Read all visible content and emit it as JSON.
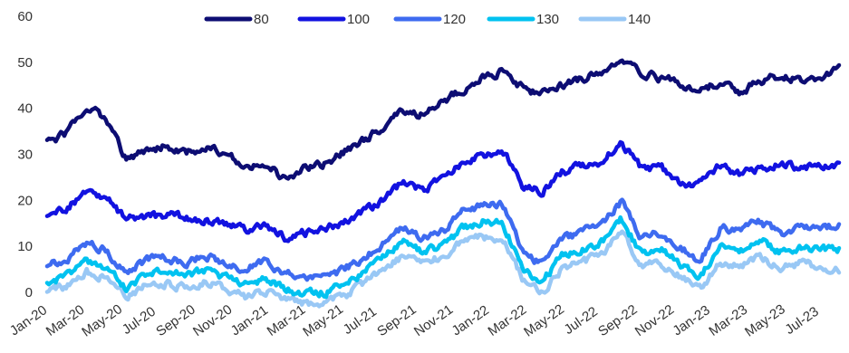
{
  "chart_data": {
    "type": "line",
    "title": "",
    "xlabel": "",
    "ylabel": "",
    "ylim": [
      0,
      60
    ],
    "yticks": [
      "0",
      "10",
      "20",
      "30",
      "40",
      "50",
      "60"
    ],
    "legend_position": "top",
    "grid": false,
    "x_labels": [
      "Jan-20",
      "Mar-20",
      "May-20",
      "Jul-20",
      "Sep-20",
      "Nov-20",
      "Jan-21",
      "Mar-21",
      "May-21",
      "Jul-21",
      "Sep-21",
      "Nov-21",
      "Jan-22",
      "Mar-22",
      "May-22",
      "Jul-22",
      "Sep-22",
      "Nov-22",
      "Jan-23",
      "Mar-23",
      "May-23",
      "Jul-23"
    ],
    "series": [
      {
        "name": "80",
        "color": "#0d0d73",
        "values": [
          32.5,
          34.5,
          40.5,
          37.5,
          29.0,
          30.5,
          32.0,
          30.5,
          31.5,
          30.0,
          27.5,
          28.0,
          24.5,
          27.0,
          28.0,
          30.5,
          33.0,
          36.0,
          39.5,
          38.5,
          41.5,
          44.0,
          46.5,
          48.0,
          44.5,
          43.0,
          45.0,
          46.5,
          47.5,
          49.5,
          48.0,
          46.5,
          45.5,
          44.0,
          45.5,
          43.5,
          46.0,
          47.0,
          46.5,
          46.5,
          48.5
        ]
      },
      {
        "name": "100",
        "color": "#1212e0",
        "values": [
          16.5,
          18.5,
          22.0,
          20.5,
          16.0,
          16.5,
          16.5,
          16.5,
          15.5,
          15.0,
          13.5,
          14.5,
          12.0,
          13.0,
          13.5,
          15.5,
          17.5,
          20.0,
          24.0,
          22.0,
          25.0,
          28.5,
          29.5,
          31.0,
          23.0,
          22.0,
          26.0,
          27.5,
          28.5,
          32.5,
          27.0,
          27.0,
          24.0,
          23.5,
          27.5,
          25.5,
          27.0,
          28.0,
          27.0,
          27.5,
          28.0
        ]
      },
      {
        "name": "120",
        "color": "#3e6bf0",
        "values": [
          6.0,
          7.5,
          11.0,
          9.0,
          4.0,
          7.0,
          7.5,
          6.5,
          8.0,
          6.5,
          5.0,
          6.5,
          4.0,
          3.0,
          3.0,
          5.0,
          7.5,
          10.5,
          14.0,
          12.0,
          13.0,
          17.5,
          19.0,
          19.5,
          9.0,
          6.0,
          11.5,
          13.0,
          14.5,
          19.5,
          12.0,
          13.0,
          9.5,
          7.0,
          14.0,
          13.5,
          15.5,
          12.5,
          14.0,
          14.0,
          14.5
        ]
      },
      {
        "name": "130",
        "color": "#00c2f0",
        "values": [
          2.0,
          3.5,
          7.0,
          5.5,
          1.0,
          4.0,
          4.5,
          3.5,
          5.0,
          3.0,
          1.5,
          3.0,
          0.5,
          0.0,
          0.0,
          1.5,
          4.5,
          7.5,
          11.0,
          9.0,
          10.0,
          14.0,
          15.5,
          15.5,
          5.0,
          2.5,
          8.0,
          9.5,
          11.0,
          16.0,
          8.5,
          9.5,
          6.0,
          3.5,
          10.0,
          9.0,
          11.5,
          8.5,
          10.0,
          9.5,
          9.5
        ]
      },
      {
        "name": "140",
        "color": "#99c8f5",
        "values": [
          -0.5,
          1.5,
          4.5,
          3.0,
          -1.0,
          1.5,
          2.0,
          1.0,
          2.5,
          0.5,
          -1.0,
          0.5,
          -1.5,
          -2.5,
          -2.0,
          -1.0,
          2.0,
          5.0,
          8.0,
          7.0,
          7.5,
          11.0,
          12.0,
          12.0,
          3.0,
          0.0,
          5.0,
          6.5,
          8.0,
          13.0,
          6.0,
          6.0,
          3.5,
          1.0,
          6.5,
          5.5,
          8.0,
          5.0,
          6.5,
          5.5,
          5.0
        ]
      }
    ]
  }
}
